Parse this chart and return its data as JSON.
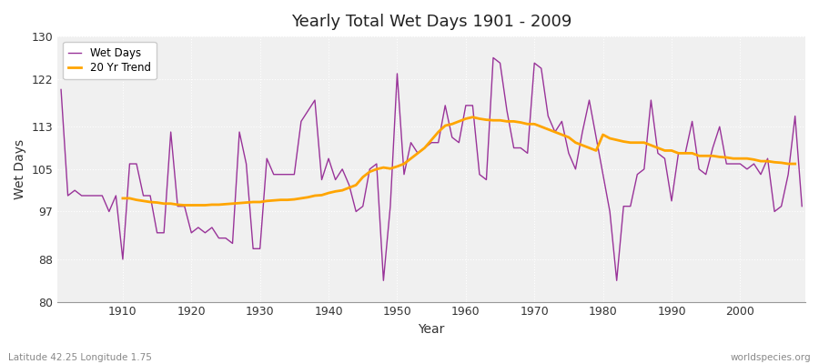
{
  "title": "Yearly Total Wet Days 1901 - 2009",
  "xlabel": "Year",
  "ylabel": "Wet Days",
  "lat_lon_label": "Latitude 42.25 Longitude 1.75",
  "watermark": "worldspecies.org",
  "legend_wet_days": "Wet Days",
  "legend_trend": "20 Yr Trend",
  "wet_days_color": "#993399",
  "trend_color": "#FFA500",
  "bg_color": "#F0F0F0",
  "grid_color": "#FFFFFF",
  "ylim": [
    80,
    130
  ],
  "yticks": [
    80,
    88,
    97,
    105,
    113,
    122,
    130
  ],
  "xticks": [
    1910,
    1920,
    1930,
    1940,
    1950,
    1960,
    1970,
    1980,
    1990,
    2000
  ],
  "years": [
    1901,
    1902,
    1903,
    1904,
    1905,
    1906,
    1907,
    1908,
    1909,
    1910,
    1911,
    1912,
    1913,
    1914,
    1915,
    1916,
    1917,
    1918,
    1919,
    1920,
    1921,
    1922,
    1923,
    1924,
    1925,
    1926,
    1927,
    1928,
    1929,
    1930,
    1931,
    1932,
    1933,
    1934,
    1935,
    1936,
    1937,
    1938,
    1939,
    1940,
    1941,
    1942,
    1943,
    1944,
    1945,
    1946,
    1947,
    1948,
    1949,
    1950,
    1951,
    1952,
    1953,
    1954,
    1955,
    1956,
    1957,
    1958,
    1959,
    1960,
    1961,
    1962,
    1963,
    1964,
    1965,
    1966,
    1967,
    1968,
    1969,
    1970,
    1971,
    1972,
    1973,
    1974,
    1975,
    1976,
    1977,
    1978,
    1979,
    1980,
    1981,
    1982,
    1983,
    1984,
    1985,
    1986,
    1987,
    1988,
    1989,
    1990,
    1991,
    1992,
    1993,
    1994,
    1995,
    1996,
    1997,
    1998,
    1999,
    2000,
    2001,
    2002,
    2003,
    2004,
    2005,
    2006,
    2007,
    2008,
    2009
  ],
  "wet_days": [
    120,
    100,
    101,
    100,
    100,
    100,
    100,
    97,
    100,
    88,
    106,
    106,
    100,
    100,
    93,
    93,
    112,
    98,
    98,
    93,
    94,
    93,
    94,
    92,
    92,
    91,
    112,
    106,
    90,
    90,
    107,
    104,
    104,
    104,
    104,
    114,
    116,
    118,
    103,
    107,
    103,
    105,
    102,
    97,
    98,
    105,
    106,
    84,
    98,
    123,
    104,
    110,
    108,
    109,
    110,
    110,
    117,
    111,
    110,
    117,
    117,
    104,
    103,
    126,
    125,
    116,
    109,
    109,
    108,
    125,
    124,
    115,
    112,
    114,
    108,
    105,
    112,
    118,
    111,
    104,
    97,
    84,
    98,
    98,
    104,
    105,
    118,
    108,
    107,
    99,
    108,
    108,
    114,
    105,
    104,
    109,
    113,
    106,
    106,
    106,
    105,
    106,
    104,
    107,
    97,
    98,
    104,
    115,
    98
  ],
  "trend": [
    null,
    null,
    null,
    null,
    null,
    null,
    null,
    null,
    null,
    99.5,
    99.5,
    99.2,
    99.0,
    98.8,
    98.7,
    98.5,
    98.5,
    98.3,
    98.2,
    98.2,
    98.2,
    98.2,
    98.3,
    98.3,
    98.4,
    98.5,
    98.6,
    98.7,
    98.8,
    98.8,
    99.0,
    99.1,
    99.2,
    99.2,
    99.3,
    99.5,
    99.7,
    100.0,
    100.1,
    100.5,
    100.8,
    101.0,
    101.5,
    102.0,
    103.5,
    104.5,
    105.0,
    105.3,
    105.1,
    105.5,
    106.0,
    107.0,
    108.0,
    109.0,
    110.5,
    112.0,
    113.2,
    113.5,
    114.0,
    114.5,
    114.8,
    114.5,
    114.3,
    114.2,
    114.2,
    114.0,
    114.0,
    113.8,
    113.5,
    113.5,
    113.0,
    112.5,
    112.0,
    111.5,
    111.0,
    110.0,
    109.5,
    109.0,
    108.5,
    111.5,
    110.8,
    110.5,
    110.2,
    110.0,
    110.0,
    110.0,
    109.5,
    109.0,
    108.5,
    108.5,
    108.0,
    108.0,
    108.0,
    107.5,
    107.5,
    107.5,
    107.3,
    107.2,
    107.0,
    107.0,
    107.0,
    106.8,
    106.5,
    106.5,
    106.3,
    106.2,
    106.0,
    106.0,
    null
  ]
}
